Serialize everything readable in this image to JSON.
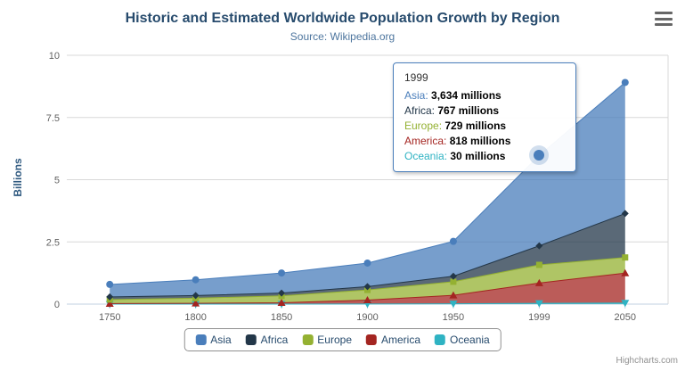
{
  "header": {
    "title": "Historic and Estimated Worldwide Population Growth by Region",
    "subtitle": "Source: Wikipedia.org"
  },
  "credits": "Highcharts.com",
  "chart_data": {
    "type": "area",
    "stacked": true,
    "grid": true,
    "legend_position": "bottom",
    "title": "Historic and Estimated Worldwide Population Growth by Region",
    "subtitle": "Source: Wikipedia.org",
    "xlabel": "",
    "ylabel": "Billions",
    "unit": "millions",
    "ylim": [
      0,
      10
    ],
    "yticks": [
      0,
      2.5,
      5,
      7.5,
      10
    ],
    "categories": [
      "1750",
      "1800",
      "1850",
      "1900",
      "1950",
      "1999",
      "2050"
    ],
    "series": [
      {
        "name": "Asia",
        "color": "#4a7ebb",
        "marker": "circle",
        "values": [
          502,
          635,
          809,
          947,
          1402,
          3634,
          5268
        ]
      },
      {
        "name": "Africa",
        "color": "#233749",
        "marker": "diamond",
        "values": [
          106,
          107,
          111,
          133,
          221,
          767,
          1766
        ]
      },
      {
        "name": "Europe",
        "color": "#94b132",
        "marker": "square",
        "values": [
          163,
          203,
          276,
          408,
          547,
          729,
          628
        ]
      },
      {
        "name": "America",
        "color": "#a42521",
        "marker": "triangle",
        "values": [
          18,
          31,
          54,
          156,
          339,
          818,
          1201
        ]
      },
      {
        "name": "Oceania",
        "color": "#2fb3c3",
        "marker": "triangle-down",
        "values": [
          2,
          2,
          2,
          6,
          13,
          30,
          46
        ]
      }
    ],
    "stack_order_bottom_to_top": [
      "Oceania",
      "America",
      "Europe",
      "Africa",
      "Asia"
    ],
    "tooltip": {
      "category": "1999",
      "hover_point": {
        "series": "Asia",
        "index": 5
      },
      "rows": [
        {
          "name": "Asia",
          "value": "3,634 millions"
        },
        {
          "name": "Africa",
          "value": "767 millions"
        },
        {
          "name": "Europe",
          "value": "729 millions"
        },
        {
          "name": "America",
          "value": "818 millions"
        },
        {
          "name": "Oceania",
          "value": "30 millions"
        }
      ]
    }
  }
}
